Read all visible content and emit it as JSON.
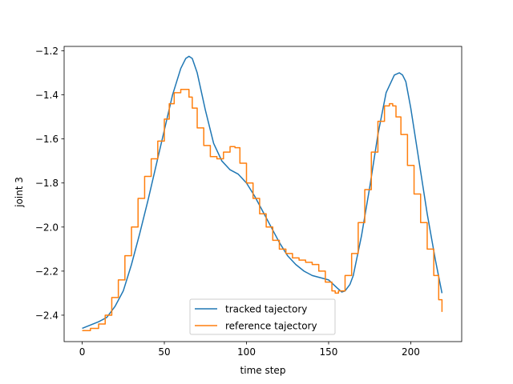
{
  "chart_data": {
    "type": "line",
    "title": "",
    "xlabel": "time step",
    "ylabel": "joint 3",
    "xlim": [
      -11,
      231
    ],
    "ylim": [
      -2.52,
      -1.18
    ],
    "xticks": [
      0,
      50,
      100,
      150,
      200
    ],
    "yticks": [
      -2.4,
      -2.2,
      -2.0,
      -1.8,
      -1.6,
      -1.4,
      -1.2
    ],
    "ytick_labels": [
      "−2.4",
      "−2.2",
      "−2.0",
      "−1.8",
      "−1.6",
      "−1.4",
      "−1.2"
    ],
    "grid": false,
    "legend_position": "lower-center",
    "series": [
      {
        "name": "tracked tajectory",
        "color": "#1f77b4",
        "x": [
          0,
          10,
          15,
          20,
          25,
          30,
          35,
          40,
          45,
          50,
          55,
          60,
          63,
          65,
          67,
          70,
          75,
          80,
          85,
          90,
          95,
          100,
          105,
          110,
          115,
          120,
          125,
          130,
          135,
          140,
          145,
          150,
          155,
          158,
          160,
          163,
          165,
          170,
          175,
          180,
          185,
          190,
          193,
          195,
          197,
          200,
          205,
          210,
          215,
          219
        ],
        "values": [
          -2.46,
          -2.43,
          -2.41,
          -2.36,
          -2.29,
          -2.17,
          -2.03,
          -1.88,
          -1.72,
          -1.56,
          -1.4,
          -1.28,
          -1.235,
          -1.225,
          -1.235,
          -1.3,
          -1.47,
          -1.62,
          -1.7,
          -1.74,
          -1.76,
          -1.8,
          -1.86,
          -1.93,
          -2.0,
          -2.07,
          -2.13,
          -2.17,
          -2.2,
          -2.22,
          -2.23,
          -2.24,
          -2.275,
          -2.295,
          -2.29,
          -2.26,
          -2.22,
          -2.04,
          -1.82,
          -1.58,
          -1.39,
          -1.31,
          -1.3,
          -1.31,
          -1.34,
          -1.46,
          -1.7,
          -1.94,
          -2.15,
          -2.3
        ]
      },
      {
        "name": "reference tajectory",
        "color": "#ff7f0e",
        "x": [
          0,
          5,
          10,
          14,
          18,
          22,
          26,
          30,
          34,
          38,
          42,
          46,
          50,
          53,
          56,
          60,
          64,
          65,
          67,
          70,
          74,
          78,
          82,
          86,
          90,
          93,
          96,
          100,
          104,
          108,
          112,
          116,
          120,
          124,
          128,
          132,
          136,
          140,
          144,
          148,
          152,
          154,
          156,
          160,
          164,
          168,
          172,
          176,
          180,
          184,
          187,
          189,
          191,
          194,
          198,
          202,
          206,
          210,
          214,
          217,
          219
        ],
        "values": [
          -2.47,
          -2.46,
          -2.44,
          -2.4,
          -2.32,
          -2.24,
          -2.13,
          -2.0,
          -1.87,
          -1.77,
          -1.69,
          -1.61,
          -1.51,
          -1.44,
          -1.39,
          -1.375,
          -1.375,
          -1.41,
          -1.46,
          -1.55,
          -1.63,
          -1.68,
          -1.69,
          -1.66,
          -1.635,
          -1.64,
          -1.71,
          -1.8,
          -1.87,
          -1.94,
          -2.0,
          -2.06,
          -2.1,
          -2.12,
          -2.14,
          -2.15,
          -2.16,
          -2.17,
          -2.2,
          -2.25,
          -2.29,
          -2.3,
          -2.29,
          -2.22,
          -2.12,
          -1.98,
          -1.83,
          -1.66,
          -1.52,
          -1.45,
          -1.44,
          -1.45,
          -1.5,
          -1.58,
          -1.72,
          -1.85,
          -1.98,
          -2.1,
          -2.22,
          -2.33,
          -2.385
        ]
      }
    ]
  }
}
